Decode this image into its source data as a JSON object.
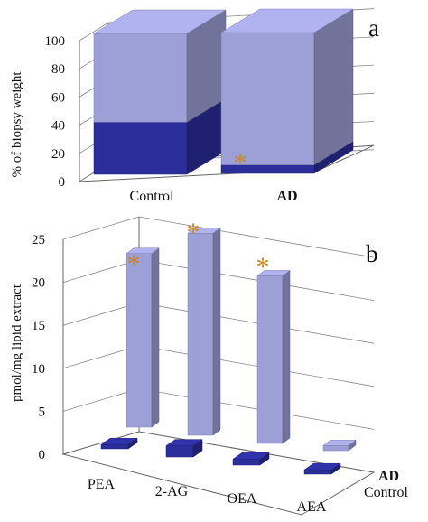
{
  "chart_data": [
    {
      "type": "bar",
      "panel_label": "a",
      "ylabel": "% of biopsy weight",
      "ylim": [
        0,
        100
      ],
      "yticks": [
        0,
        20,
        40,
        60,
        80,
        100
      ],
      "categories": [
        "Control",
        "AD"
      ],
      "stacked": true,
      "three_d": true,
      "series": [
        {
          "values": [
            37,
            6
          ],
          "color": "#2b2d9a"
        },
        {
          "values": [
            63,
            94
          ],
          "color": "#9da0d6"
        }
      ],
      "annotations": [
        {
          "text": "*",
          "category": "AD",
          "color": "#c8862a"
        }
      ]
    },
    {
      "type": "bar",
      "panel_label": "b",
      "ylabel": "pmol/mg lipid extract",
      "ylim": [
        0,
        25
      ],
      "yticks": [
        0,
        5,
        10,
        15,
        20,
        25
      ],
      "categories": [
        "PEA",
        "2-AG",
        "OEA",
        "AEA"
      ],
      "three_d": true,
      "series": [
        {
          "name": "AD",
          "values": [
            20.2,
            23.5,
            19.5,
            0.6
          ],
          "color": "#9da0d6"
        },
        {
          "name": "Control",
          "values": [
            0.5,
            1.3,
            0.7,
            0.5
          ],
          "color": "#2b2d9a"
        }
      ],
      "annotations": [
        {
          "text": "*",
          "category": "PEA",
          "color": "#c8862a"
        },
        {
          "text": "*",
          "category": "2-AG",
          "color": "#c8862a"
        },
        {
          "text": "*",
          "category": "OEA",
          "color": "#c8862a"
        }
      ]
    }
  ]
}
